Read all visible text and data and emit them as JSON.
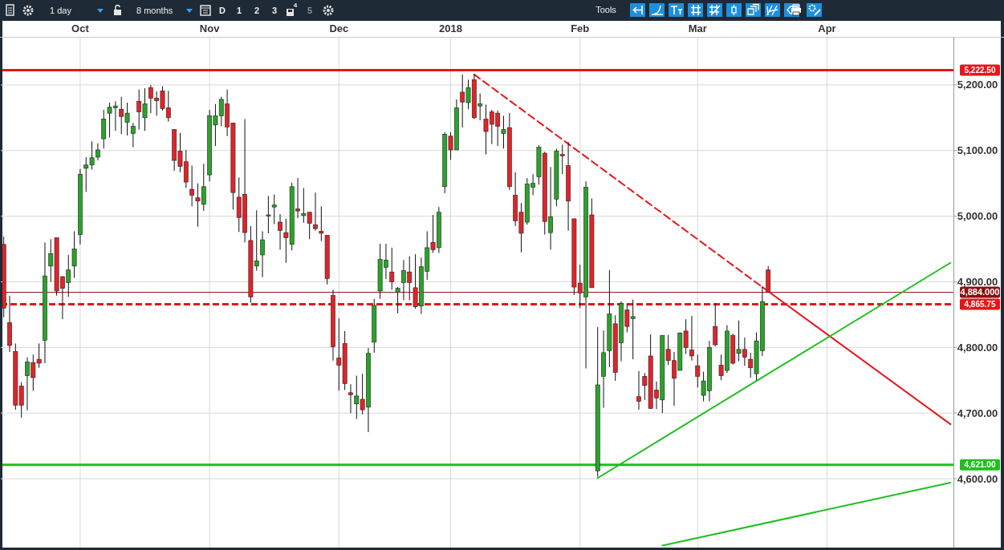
{
  "chart_data": {
    "type": "candlestick",
    "categories": [
      null,
      null,
      null,
      null,
      null,
      null,
      null,
      null,
      null,
      null,
      null,
      null,
      null,
      "Oct",
      null,
      null,
      null,
      null,
      null,
      null,
      null,
      null,
      null,
      null,
      null,
      null,
      null,
      null,
      null,
      null,
      null,
      null,
      null,
      null,
      null,
      "Nov",
      null,
      null,
      null,
      null,
      null,
      null,
      null,
      null,
      null,
      null,
      null,
      null,
      null,
      null,
      null,
      null,
      null,
      null,
      null,
      null,
      null,
      "Dec",
      null,
      null,
      null,
      null,
      null,
      null,
      null,
      null,
      null,
      null,
      null,
      null,
      null,
      null,
      null,
      null,
      null,
      null,
      "2018",
      null,
      null,
      null,
      null,
      null,
      null,
      null,
      null,
      null,
      null,
      null,
      null,
      null,
      null,
      null,
      null,
      null,
      null,
      null,
      null,
      null,
      "Feb",
      null,
      null,
      null,
      null,
      null,
      null,
      null,
      null,
      null,
      null,
      null,
      null,
      null,
      null,
      null,
      null,
      null,
      null,
      null,
      "Mar",
      null,
      null,
      null,
      null,
      null,
      null,
      null,
      null,
      null,
      null,
      null,
      null,
      null,
      null,
      null,
      null,
      null,
      null,
      null,
      null,
      null,
      "Apr",
      null,
      null,
      null,
      null,
      null,
      null,
      null,
      null,
      null,
      null,
      null,
      null,
      null,
      null,
      null,
      null,
      null,
      null,
      null,
      null,
      null
    ],
    "ohlc": [
      [
        4957,
        4969,
        4846,
        4860
      ],
      [
        4838,
        4879,
        4793,
        4803
      ],
      [
        4794,
        4806,
        4705,
        4712
      ],
      [
        4741,
        4747,
        4693,
        4712
      ],
      [
        4757,
        4785,
        4704,
        4778
      ],
      [
        4777,
        4789,
        4734,
        4754
      ],
      [
        4782,
        4806,
        4769,
        4776
      ],
      [
        4811,
        4960,
        4776,
        4909
      ],
      [
        4924,
        4965,
        4900,
        4943
      ],
      [
        4967,
        4967,
        4879,
        4886
      ],
      [
        4908,
        4908,
        4843,
        4890
      ],
      [
        4899,
        4941,
        4877,
        4918
      ],
      [
        4924,
        4977,
        4906,
        4950
      ],
      [
        4972,
        5072,
        4957,
        5064
      ],
      [
        5073,
        5090,
        5037,
        5078
      ],
      [
        5078,
        5114,
        5071,
        5089
      ],
      [
        5090,
        5111,
        5085,
        5101
      ],
      [
        5118,
        5162,
        5103,
        5148
      ],
      [
        5157,
        5173,
        5120,
        5166
      ],
      [
        5165,
        5175,
        5130,
        5168
      ],
      [
        5163,
        5182,
        5125,
        5152
      ],
      [
        5143,
        5173,
        5123,
        5157
      ],
      [
        5126,
        5142,
        5105,
        5137
      ],
      [
        5175,
        5193,
        5132,
        5159
      ],
      [
        5150,
        5195,
        5130,
        5171
      ],
      [
        5196,
        5200,
        5157,
        5180
      ],
      [
        5180,
        5190,
        5153,
        5176
      ],
      [
        5191,
        5198,
        5161,
        5164
      ],
      [
        5165,
        5191,
        5144,
        5150
      ],
      [
        5132,
        5132,
        5069,
        5085
      ],
      [
        5099,
        5127,
        5067,
        5076
      ],
      [
        5083,
        5101,
        5043,
        5052
      ],
      [
        5041,
        5077,
        5015,
        5032
      ],
      [
        5028,
        5050,
        4984,
        5023
      ],
      [
        5018,
        5080,
        5008,
        5045
      ],
      [
        5063,
        5162,
        5053,
        5153
      ],
      [
        5139,
        5171,
        5107,
        5153
      ],
      [
        5153,
        5182,
        5137,
        5178
      ],
      [
        5171,
        5193,
        5122,
        5136
      ],
      [
        5142,
        5142,
        5010,
        5036
      ],
      [
        5029,
        5059,
        4976,
        4998
      ],
      [
        5033,
        5148,
        4960,
        4975
      ],
      [
        4963,
        4985,
        4868,
        4877
      ],
      [
        4924,
        5009,
        4917,
        4932
      ],
      [
        4941,
        4977,
        4907,
        4964
      ],
      [
        5000,
        5031,
        4974,
        5002
      ],
      [
        5014,
        5033,
        4988,
        5017
      ],
      [
        4991,
        5003,
        4949,
        4978
      ],
      [
        4975,
        4996,
        4929,
        4967
      ],
      [
        4957,
        5051,
        4948,
        5045
      ],
      [
        5011,
        5058,
        4997,
        5008
      ],
      [
        5001,
        5043,
        4990,
        5004
      ],
      [
        5006,
        5006,
        4965,
        4989
      ],
      [
        4987,
        5036,
        4978,
        4981
      ],
      [
        4977,
        5015,
        4962,
        4974
      ],
      [
        4971,
        4971,
        4896,
        4905
      ],
      [
        4879,
        4888,
        4780,
        4801
      ],
      [
        4784,
        4844,
        4734,
        4773
      ],
      [
        4806,
        4825,
        4735,
        4745
      ],
      [
        4731,
        4744,
        4700,
        4728
      ],
      [
        4714,
        4757,
        4691,
        4726
      ],
      [
        4721,
        4760,
        4698,
        4705
      ],
      [
        4709,
        4799,
        4671,
        4791
      ],
      [
        4808,
        4874,
        4792,
        4864
      ],
      [
        4886,
        4958,
        4874,
        4934
      ],
      [
        4922,
        4958,
        4904,
        4933
      ],
      [
        4915,
        4952,
        4888,
        4900
      ],
      [
        4884,
        4892,
        4852,
        4890
      ],
      [
        4899,
        4933,
        4872,
        4917
      ],
      [
        4915,
        4939,
        4872,
        4899
      ],
      [
        4891,
        4942,
        4859,
        4862
      ],
      [
        4863,
        4937,
        4851,
        4923
      ],
      [
        4916,
        4977,
        4903,
        4952
      ],
      [
        4960,
        5002,
        4944,
        4949
      ],
      [
        4952,
        5014,
        4944,
        5006
      ],
      [
        5045,
        5128,
        5035,
        5125
      ],
      [
        5122,
        5128,
        5086,
        5101
      ],
      [
        5101,
        5178,
        5101,
        5165
      ],
      [
        5189,
        5216,
        5135,
        5174
      ],
      [
        5173,
        5208,
        5163,
        5196
      ],
      [
        5208,
        5216,
        5148,
        5150
      ],
      [
        5168,
        5187,
        5146,
        5171
      ],
      [
        5148,
        5170,
        5094,
        5129
      ],
      [
        5159,
        5162,
        5110,
        5140
      ],
      [
        5157,
        5161,
        5107,
        5137
      ],
      [
        5126,
        5153,
        5103,
        5132
      ],
      [
        5135,
        5157,
        5040,
        5045
      ],
      [
        5032,
        5067,
        4985,
        4993
      ],
      [
        5006,
        5020,
        4945,
        4974
      ],
      [
        4991,
        5058,
        4987,
        5049
      ],
      [
        5044,
        5064,
        5032,
        5050
      ],
      [
        5060,
        5108,
        5048,
        5105
      ],
      [
        5096,
        5098,
        4972,
        4992
      ],
      [
        4975,
        5075,
        4949,
        4999
      ],
      [
        5026,
        5103,
        5015,
        5099
      ],
      [
        5094,
        5109,
        5064,
        5092
      ],
      [
        5077,
        5113,
        4978,
        5023
      ],
      [
        4996,
        4996,
        4880,
        4892
      ],
      [
        4898,
        4926,
        4860,
        4883
      ],
      [
        4877,
        5053,
        4768,
        5044
      ],
      [
        5002,
        5027,
        4891,
        4891
      ],
      [
        4612,
        4831,
        4603,
        4743
      ],
      [
        4756,
        4826,
        4708,
        4792
      ],
      [
        4795,
        4918,
        4770,
        4851
      ],
      [
        4836,
        4849,
        4749,
        4762
      ],
      [
        4807,
        4870,
        4779,
        4867
      ],
      [
        4857,
        4867,
        4823,
        4832
      ],
      [
        4844,
        4873,
        4782,
        4847
      ],
      [
        4725,
        4764,
        4705,
        4718
      ],
      [
        4756,
        4761,
        4720,
        4742
      ],
      [
        4787,
        4820,
        4707,
        4707
      ],
      [
        4735,
        4748,
        4706,
        4723
      ],
      [
        4720,
        4819,
        4700,
        4818
      ],
      [
        4797,
        4819,
        4773,
        4780
      ],
      [
        4780,
        4793,
        4711,
        4753
      ],
      [
        4765,
        4823,
        4765,
        4822
      ],
      [
        4825,
        4843,
        4790,
        4800
      ],
      [
        4796,
        4848,
        4780,
        4787
      ],
      [
        4772,
        4789,
        4739,
        4756
      ],
      [
        4727,
        4763,
        4718,
        4749
      ],
      [
        4734,
        4810,
        4718,
        4800
      ],
      [
        4832,
        4867,
        4802,
        4804
      ],
      [
        4773,
        4789,
        4750,
        4757
      ],
      [
        4765,
        4834,
        4761,
        4825
      ],
      [
        4818,
        4821,
        4774,
        4776
      ],
      [
        4791,
        4841,
        4779,
        4797
      ],
      [
        4797,
        4815,
        4772,
        4785
      ],
      [
        4782,
        4792,
        4754,
        4769
      ],
      [
        4760,
        4823,
        4750,
        4810
      ],
      [
        4795,
        4892,
        4787,
        4870
      ],
      [
        4918,
        4924,
        4884,
        4884
      ],
      null,
      null,
      null,
      null,
      null,
      null,
      null,
      null,
      null,
      null,
      null,
      null,
      null,
      null,
      null,
      null,
      null,
      null,
      null,
      null,
      null,
      null,
      null,
      null,
      null,
      null,
      null,
      null,
      null,
      null,
      null
    ],
    "series": [
      {
        "type": "line",
        "color": "#e8141a",
        "line_style": "dashed",
        "values": [
          null,
          null,
          null,
          null,
          null,
          null,
          null,
          null,
          null,
          null,
          null,
          null,
          null,
          null,
          null,
          null,
          null,
          null,
          null,
          null,
          null,
          null,
          null,
          null,
          null,
          null,
          null,
          null,
          null,
          null,
          null,
          null,
          null,
          null,
          null,
          null,
          null,
          null,
          null,
          null,
          null,
          null,
          null,
          null,
          null,
          null,
          null,
          null,
          null,
          null,
          null,
          null,
          null,
          null,
          null,
          null,
          null,
          null,
          null,
          null,
          null,
          null,
          null,
          null,
          null,
          null,
          null,
          null,
          null,
          null,
          null,
          null,
          null,
          null,
          null,
          null,
          null,
          null,
          null,
          null,
          5216,
          null,
          null,
          null,
          null,
          null,
          null,
          null,
          null,
          null,
          null,
          null,
          null,
          null,
          null,
          null,
          null,
          null,
          null,
          null,
          null,
          null,
          null,
          null,
          null,
          null,
          null,
          null,
          null,
          null,
          null,
          null,
          null,
          null,
          null,
          null,
          null,
          null,
          null,
          null,
          null,
          null,
          null,
          null,
          null,
          null,
          null,
          null,
          null,
          4892,
          null,
          null,
          null,
          null,
          null,
          null,
          null,
          null,
          null,
          null,
          null,
          null,
          null,
          null,
          null,
          null,
          null,
          null,
          null,
          null,
          null,
          null,
          null,
          null,
          null,
          null,
          null,
          null,
          null,
          null,
          null,
          null
        ]
      },
      {
        "type": "line",
        "color": "#e8141a",
        "line_style": "solid",
        "values": [
          null,
          null,
          null,
          null,
          null,
          null,
          null,
          null,
          null,
          null,
          null,
          null,
          null,
          null,
          null,
          null,
          null,
          null,
          null,
          null,
          null,
          null,
          null,
          null,
          null,
          null,
          null,
          null,
          null,
          null,
          null,
          null,
          null,
          null,
          null,
          null,
          null,
          null,
          null,
          null,
          null,
          null,
          null,
          null,
          null,
          null,
          null,
          null,
          null,
          null,
          null,
          null,
          null,
          null,
          null,
          null,
          null,
          null,
          null,
          null,
          null,
          null,
          null,
          null,
          null,
          null,
          null,
          null,
          null,
          null,
          null,
          null,
          null,
          null,
          null,
          null,
          null,
          null,
          null,
          null,
          null,
          null,
          null,
          null,
          null,
          null,
          null,
          null,
          null,
          null,
          null,
          null,
          null,
          null,
          null,
          null,
          null,
          null,
          null,
          null,
          null,
          null,
          null,
          null,
          null,
          null,
          null,
          null,
          null,
          null,
          null,
          null,
          null,
          null,
          null,
          null,
          null,
          null,
          null,
          null,
          null,
          null,
          null,
          null,
          null,
          null,
          null,
          null,
          null,
          4892,
          null,
          null,
          null,
          null,
          null,
          null,
          null,
          null,
          null,
          null,
          null,
          null,
          null,
          null,
          null,
          null,
          null,
          null,
          null,
          null,
          null,
          null,
          null,
          null,
          null,
          null,
          null,
          null,
          null,
          null,
          null,
          4683
        ]
      },
      {
        "type": "line",
        "color": "#1fbf1f",
        "line_style": "solid",
        "values": [
          null,
          null,
          null,
          null,
          null,
          null,
          null,
          null,
          null,
          null,
          null,
          null,
          null,
          null,
          null,
          null,
          null,
          null,
          null,
          null,
          null,
          null,
          null,
          null,
          null,
          null,
          null,
          null,
          null,
          null,
          null,
          null,
          null,
          null,
          null,
          null,
          null,
          null,
          null,
          null,
          null,
          null,
          null,
          null,
          null,
          null,
          null,
          null,
          null,
          null,
          null,
          null,
          null,
          null,
          null,
          null,
          null,
          null,
          null,
          null,
          null,
          null,
          null,
          null,
          null,
          null,
          null,
          null,
          null,
          null,
          null,
          null,
          null,
          null,
          null,
          null,
          null,
          null,
          null,
          null,
          null,
          null,
          null,
          null,
          null,
          null,
          null,
          null,
          null,
          null,
          null,
          null,
          null,
          null,
          null,
          null,
          null,
          null,
          null,
          null,
          null,
          4601,
          null,
          null,
          null,
          null,
          null,
          null,
          null,
          null,
          null,
          null,
          null,
          null,
          null,
          null,
          null,
          null,
          null,
          null,
          null,
          null,
          null,
          null,
          null,
          null,
          null,
          null,
          4749,
          null,
          null,
          null,
          null,
          null,
          null,
          null,
          null,
          null,
          null,
          null,
          null,
          null,
          null,
          null,
          null,
          null,
          null,
          null,
          null,
          null,
          null,
          null,
          null,
          null,
          null,
          null,
          null,
          null,
          null,
          null,
          null,
          4929
        ]
      },
      {
        "type": "line",
        "color": "#1fbf1f",
        "line_style": "solid",
        "values": [
          null,
          null,
          null,
          null,
          null,
          null,
          null,
          null,
          null,
          null,
          null,
          null,
          null,
          null,
          null,
          null,
          null,
          null,
          null,
          null,
          null,
          null,
          null,
          null,
          null,
          null,
          null,
          null,
          null,
          null,
          null,
          null,
          null,
          null,
          null,
          null,
          null,
          null,
          null,
          null,
          null,
          null,
          null,
          null,
          null,
          null,
          null,
          null,
          null,
          null,
          null,
          null,
          null,
          null,
          null,
          null,
          null,
          null,
          null,
          null,
          null,
          null,
          null,
          null,
          null,
          null,
          null,
          null,
          null,
          null,
          null,
          null,
          null,
          null,
          null,
          null,
          null,
          null,
          null,
          null,
          null,
          null,
          null,
          null,
          null,
          null,
          null,
          null,
          null,
          null,
          null,
          null,
          null,
          null,
          null,
          null,
          null,
          null,
          null,
          null,
          null,
          null,
          null,
          null,
          null,
          null,
          null,
          null,
          null,
          null,
          null,
          null,
          4498,
          null,
          null,
          null,
          null,
          null,
          null,
          null,
          null,
          null,
          null,
          null,
          null,
          null,
          null,
          null,
          null,
          null,
          null,
          null,
          null,
          null,
          null,
          null,
          null,
          null,
          null,
          null,
          null,
          null,
          null,
          null,
          null,
          null,
          null,
          null,
          null,
          null,
          null,
          null,
          null,
          null,
          null,
          null,
          null,
          null,
          null,
          null,
          null,
          4594
        ]
      }
    ],
    "ylim": [
      4495,
      5272
    ],
    "yticks": [
      {
        "value": 4600,
        "label": "4,600.00"
      },
      {
        "value": 4700,
        "label": "4,700.00"
      },
      {
        "value": 4800,
        "label": "4,800.00"
      },
      {
        "value": 4900,
        "label": "4,900.00"
      },
      {
        "value": 5000,
        "label": "5,000.00"
      },
      {
        "value": 5100,
        "label": "5,100.00"
      },
      {
        "value": 5200,
        "label": "5,200.00"
      }
    ],
    "grid": true,
    "ref_lines": [
      {
        "axis": "y",
        "value": 5222.5,
        "label": "5,222.50",
        "color": "#e8141a",
        "line_style": "solid"
      },
      {
        "axis": "y",
        "value": 4884,
        "label": "4,884.000",
        "color": "#8b1010"
      },
      {
        "axis": "y",
        "value": 4865.75,
        "label": "4,865.75",
        "color": "#e8141a",
        "line_style": "dashed"
      },
      {
        "axis": "y",
        "value": 4621,
        "label": "4,621.00",
        "color": "#1fbf1f",
        "line_style": "solid"
      }
    ],
    "annotations": [
      "1 day",
      "8 months",
      "D",
      "1",
      "2",
      "3",
      "4",
      "5",
      "Tools"
    ]
  }
}
